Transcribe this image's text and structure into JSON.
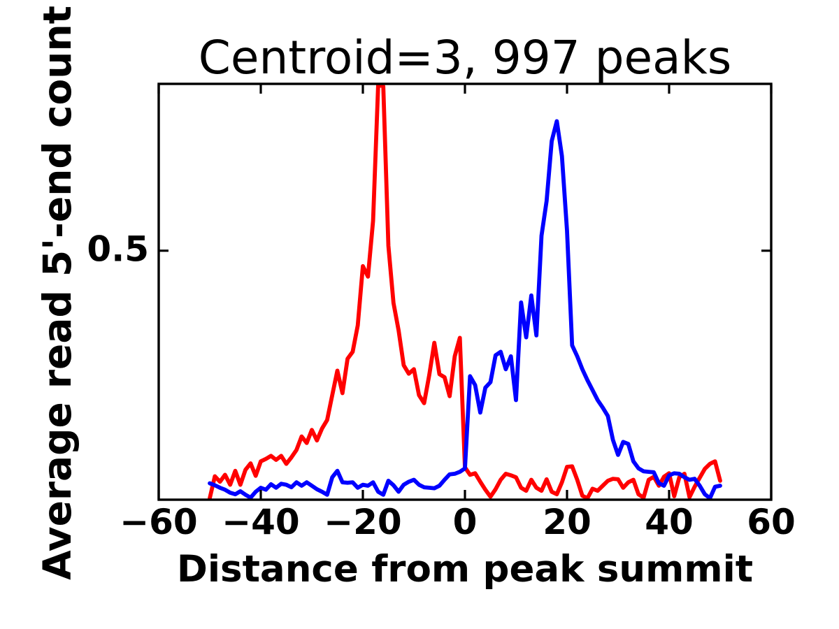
{
  "chart_data": {
    "type": "line",
    "title": "Centroid=3, 997 peaks",
    "xlabel": "Distance from peak summit",
    "ylabel": "Average read 5'-end count",
    "xlim": [
      -60,
      60
    ],
    "ylim": [
      0,
      0.835
    ],
    "xticks": [
      -60,
      -40,
      -20,
      0,
      20,
      40,
      60
    ],
    "xtick_labels": [
      "−60",
      "−40",
      "−20",
      "0",
      "20",
      "40",
      "60"
    ],
    "yticks": [
      0.5
    ],
    "ytick_labels": [
      "0.5"
    ],
    "grid": false,
    "legend_position": "none",
    "background_color": "#ffffff",
    "axis_color": "#000000",
    "x": [
      -50,
      -49,
      -48,
      -47,
      -46,
      -45,
      -44,
      -43,
      -42,
      -41,
      -40,
      -39,
      -38,
      -37,
      -36,
      -35,
      -34,
      -33,
      -32,
      -31,
      -30,
      -29,
      -28,
      -27,
      -26,
      -25,
      -24,
      -23,
      -22,
      -21,
      -20,
      -19,
      -18,
      -17,
      -16,
      -15,
      -14,
      -13,
      -12,
      -11,
      -10,
      -9,
      -8,
      -7,
      -6,
      -5,
      -4,
      -3,
      -2,
      -1,
      0,
      1,
      2,
      3,
      4,
      5,
      6,
      7,
      8,
      9,
      10,
      11,
      12,
      13,
      14,
      15,
      16,
      17,
      18,
      19,
      20,
      21,
      22,
      23,
      24,
      25,
      26,
      27,
      28,
      29,
      30,
      31,
      32,
      33,
      34,
      35,
      36,
      37,
      38,
      39,
      40,
      41,
      42,
      43,
      44,
      45,
      46,
      47,
      48,
      49,
      50
    ],
    "series": [
      {
        "name": "red",
        "color": "#ff0000",
        "values": [
          0.003,
          0.047,
          0.036,
          0.05,
          0.03,
          0.058,
          0.03,
          0.06,
          0.073,
          0.048,
          0.077,
          0.082,
          0.088,
          0.08,
          0.088,
          0.072,
          0.085,
          0.1,
          0.127,
          0.114,
          0.14,
          0.119,
          0.143,
          0.16,
          0.21,
          0.259,
          0.214,
          0.283,
          0.297,
          0.35,
          0.469,
          0.448,
          0.56,
          0.833,
          0.83,
          0.51,
          0.395,
          0.34,
          0.27,
          0.253,
          0.262,
          0.21,
          0.194,
          0.25,
          0.315,
          0.252,
          0.246,
          0.208,
          0.288,
          0.325,
          0.065,
          0.05,
          0.053,
          0.036,
          0.02,
          0.006,
          0.021,
          0.04,
          0.052,
          0.049,
          0.045,
          0.024,
          0.018,
          0.04,
          0.024,
          0.018,
          0.041,
          0.016,
          0.011,
          0.035,
          0.066,
          0.067,
          0.04,
          0.008,
          0.003,
          0.022,
          0.018,
          0.028,
          0.038,
          0.042,
          0.041,
          0.024,
          0.035,
          0.04,
          0.011,
          0.004,
          0.04,
          0.046,
          0.028,
          0.046,
          0.053,
          0.007,
          0.045,
          0.052,
          0.005,
          0.026,
          0.044,
          0.062,
          0.072,
          0.077,
          0.038
        ]
      },
      {
        "name": "blue",
        "color": "#0000ff",
        "values": [
          0.033,
          0.029,
          0.024,
          0.02,
          0.014,
          0.011,
          0.017,
          0.01,
          0.004,
          0.016,
          0.024,
          0.02,
          0.031,
          0.024,
          0.032,
          0.03,
          0.025,
          0.035,
          0.028,
          0.035,
          0.028,
          0.021,
          0.016,
          0.01,
          0.045,
          0.058,
          0.035,
          0.034,
          0.035,
          0.024,
          0.03,
          0.028,
          0.035,
          0.016,
          0.01,
          0.038,
          0.029,
          0.016,
          0.03,
          0.036,
          0.04,
          0.03,
          0.025,
          0.024,
          0.023,
          0.028,
          0.04,
          0.051,
          0.052,
          0.056,
          0.063,
          0.248,
          0.23,
          0.175,
          0.225,
          0.236,
          0.29,
          0.297,
          0.262,
          0.288,
          0.2,
          0.396,
          0.326,
          0.41,
          0.33,
          0.53,
          0.6,
          0.72,
          0.76,
          0.69,
          0.54,
          0.31,
          0.288,
          0.262,
          0.24,
          0.22,
          0.2,
          0.185,
          0.168,
          0.12,
          0.09,
          0.116,
          0.112,
          0.077,
          0.063,
          0.057,
          0.056,
          0.055,
          0.033,
          0.028,
          0.049,
          0.053,
          0.052,
          0.045,
          0.04,
          0.042,
          0.028,
          0.011,
          0.003,
          0.026,
          0.028
        ]
      }
    ]
  }
}
